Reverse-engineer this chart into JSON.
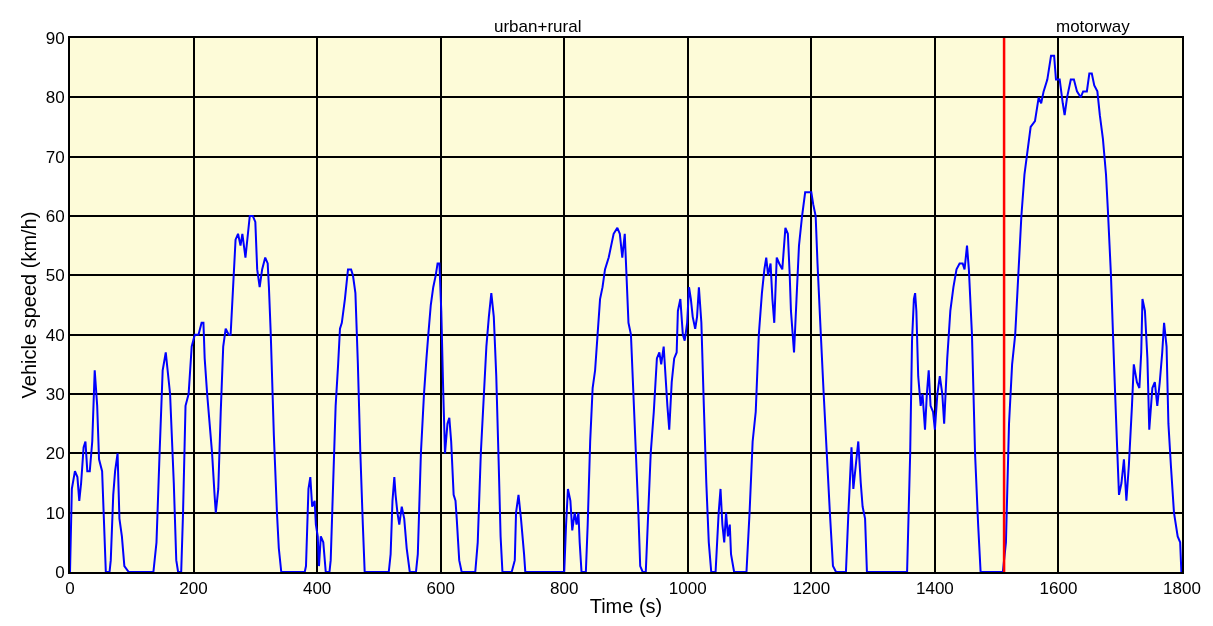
{
  "chart_data": {
    "type": "line",
    "xlabel": "Time (s)",
    "ylabel": "Vehicle speed (km/h)",
    "annotations": [
      "urban+rural",
      "motorway"
    ],
    "xlim": [
      0,
      1800
    ],
    "xticks": [
      0,
      200,
      400,
      600,
      800,
      1000,
      1200,
      1400,
      1600,
      1800
    ],
    "ylim": [
      0,
      90
    ],
    "yticks": [
      0,
      10,
      20,
      30,
      40,
      50,
      60,
      70,
      80,
      90
    ],
    "grid": true,
    "marker": "none",
    "line_style": "solid",
    "ref_lines": [
      {
        "axis": "x",
        "value": 1512,
        "color": "#ff0000"
      }
    ],
    "series": [
      {
        "color": "#0000ff",
        "x": [
          0,
          3,
          8,
          12,
          15,
          18,
          22,
          25,
          28,
          32,
          36,
          40,
          44,
          47,
          52,
          58,
          64,
          66,
          70,
          73,
          77,
          80,
          84,
          88,
          95,
          135,
          140,
          145,
          150,
          155,
          158,
          162,
          168,
          172,
          175,
          180,
          183,
          187,
          192,
          197,
          202,
          208,
          213,
          216,
          218,
          222,
          226,
          230,
          234,
          236,
          240,
          244,
          248,
          252,
          257,
          260,
          264,
          268,
          272,
          276,
          279,
          284,
          287,
          291,
          296,
          300,
          303,
          307,
          311,
          316,
          320,
          322,
          325,
          330,
          335,
          338,
          342,
          380,
          382,
          386,
          389,
          392,
          396,
          398,
          401,
          403,
          406,
          410,
          414,
          420,
          422,
          426,
          430,
          434,
          437,
          440,
          445,
          450,
          455,
          458,
          462,
          466,
          470,
          474,
          477,
          516,
          519,
          522,
          525,
          527,
          530,
          533,
          537,
          541,
          545,
          550,
          560,
          563,
          568,
          573,
          577,
          580,
          584,
          588,
          592,
          595,
          598,
          601,
          604,
          607,
          611,
          614,
          617,
          621,
          624,
          626,
          630,
          634,
          656,
          660,
          665,
          670,
          674,
          678,
          682,
          686,
          690,
          694,
          697,
          700,
          715,
          720,
          722,
          726,
          730,
          735,
          737,
          800,
          803,
          806,
          810,
          813,
          817,
          820,
          823,
          825,
          828,
          835,
          838,
          842,
          846,
          850,
          854,
          858,
          862,
          866,
          872,
          876,
          880,
          886,
          890,
          894,
          898,
          900,
          904,
          908,
          912,
          916,
          920,
          923,
          927,
          932,
          936,
          940,
          945,
          950,
          954,
          957,
          961,
          964,
          967,
          970,
          974,
          978,
          982,
          984,
          988,
          992,
          995,
          999,
          1002,
          1005,
          1008,
          1012,
          1015,
          1018,
          1022,
          1026,
          1030,
          1034,
          1038,
          1045,
          1050,
          1053,
          1056,
          1059,
          1062,
          1065,
          1068,
          1070,
          1075,
          1095,
          1100,
          1105,
          1110,
          1115,
          1120,
          1124,
          1127,
          1130,
          1134,
          1137,
          1140,
          1144,
          1148,
          1153,
          1158,
          1162,
          1165,
          1167,
          1172,
          1176,
          1180,
          1185,
          1190,
          1196,
          1200,
          1203,
          1207,
          1210,
          1214,
          1220,
          1225,
          1230,
          1235,
          1240,
          1256,
          1260,
          1265,
          1268,
          1272,
          1276,
          1280,
          1283,
          1287,
          1290,
          1355,
          1360,
          1363,
          1366,
          1368,
          1370,
          1373,
          1377,
          1380,
          1384,
          1387,
          1390,
          1393,
          1397,
          1400,
          1404,
          1408,
          1412,
          1415,
          1420,
          1425,
          1430,
          1435,
          1440,
          1445,
          1448,
          1452,
          1455,
          1460,
          1465,
          1470,
          1474,
          1510,
          1515,
          1520,
          1525,
          1530,
          1535,
          1540,
          1545,
          1550,
          1555,
          1562,
          1568,
          1572,
          1576,
          1582,
          1588,
          1593,
          1596,
          1602,
          1607,
          1610,
          1614,
          1620,
          1625,
          1630,
          1636,
          1640,
          1646,
          1650,
          1654,
          1658,
          1663,
          1667,
          1672,
          1677,
          1680,
          1685,
          1690,
          1695,
          1698,
          1702,
          1706,
          1710,
          1714,
          1719,
          1722,
          1727,
          1731,
          1734,
          1736,
          1740,
          1744,
          1747,
          1752,
          1756,
          1760,
          1764,
          1768,
          1771,
          1775,
          1778,
          1782,
          1787,
          1793,
          1797,
          1799
        ],
        "values": [
          0,
          14,
          17,
          16,
          12,
          15,
          21,
          22,
          17,
          17,
          22,
          34,
          28,
          19,
          17,
          0,
          0,
          2,
          13,
          17,
          20,
          9,
          6,
          1,
          0,
          0,
          5,
          20,
          34,
          37,
          34,
          30,
          15,
          2,
          0,
          0,
          10,
          28,
          30,
          38,
          40,
          40,
          42,
          42,
          36,
          30,
          25,
          20,
          13,
          10,
          14,
          27,
          38,
          41,
          40,
          40,
          48,
          56,
          57,
          55,
          57,
          53,
          56,
          60,
          60,
          59,
          51,
          48,
          51,
          53,
          52,
          48,
          40,
          23,
          10,
          4,
          0,
          0,
          1,
          14,
          16,
          11,
          12,
          8,
          6,
          1,
          6,
          5,
          0,
          0,
          2,
          15,
          28,
          35,
          41,
          42,
          46,
          51,
          51,
          50,
          47,
          35,
          20,
          8,
          0,
          0,
          3,
          12,
          16,
          13,
          10,
          8,
          11,
          9,
          4,
          0,
          0,
          3,
          20,
          30,
          36,
          40,
          45,
          48,
          50,
          52,
          52,
          44,
          31,
          20,
          25,
          26,
          22,
          13,
          12,
          9,
          2,
          0,
          0,
          5,
          20,
          30,
          38,
          43,
          47,
          43,
          33,
          18,
          6,
          0,
          0,
          2,
          10,
          13,
          9,
          3,
          0,
          0,
          8,
          14,
          12,
          7,
          10,
          8,
          10,
          5,
          0,
          0,
          8,
          22,
          31,
          34,
          40,
          46,
          48,
          51,
          53,
          55,
          57,
          58,
          57,
          53,
          57,
          52,
          42,
          40,
          30,
          20,
          10,
          1,
          0,
          0,
          10,
          20,
          27,
          36,
          37,
          35,
          38,
          33,
          28,
          24,
          32,
          36,
          37,
          44,
          46,
          40,
          39,
          42,
          48,
          46,
          43,
          41,
          43,
          48,
          42,
          28,
          15,
          5,
          0,
          0,
          10,
          14,
          8,
          5,
          10,
          6,
          8,
          3,
          0,
          0,
          10,
          22,
          27,
          40,
          47,
          51,
          53,
          50,
          52,
          46,
          42,
          53,
          52,
          51,
          58,
          57,
          50,
          44,
          37,
          46,
          55,
          60,
          64,
          64,
          64,
          62,
          60,
          52,
          43,
          30,
          20,
          10,
          1,
          0,
          0,
          10,
          21,
          14,
          18,
          22,
          15,
          11,
          9,
          0,
          0,
          20,
          39,
          46,
          47,
          44,
          33,
          28,
          30,
          24,
          30,
          34,
          28,
          27,
          24,
          30,
          33,
          30,
          25,
          36,
          44,
          48,
          51,
          52,
          52,
          51,
          55,
          51,
          40,
          20,
          8,
          0,
          0,
          5,
          25,
          35,
          40,
          50,
          60,
          67,
          71,
          75,
          76,
          80,
          79,
          81,
          83,
          87,
          87,
          83,
          83,
          79,
          77,
          80,
          83,
          83,
          81,
          80,
          81,
          81,
          84,
          84,
          82,
          81,
          77,
          73,
          67,
          61,
          50,
          35,
          21,
          13,
          15,
          19,
          12,
          18,
          28,
          35,
          32,
          31,
          37,
          46,
          44,
          36,
          24,
          31,
          32,
          28,
          32,
          37,
          42,
          38,
          25,
          18,
          10,
          6,
          5,
          0
        ]
      }
    ]
  }
}
